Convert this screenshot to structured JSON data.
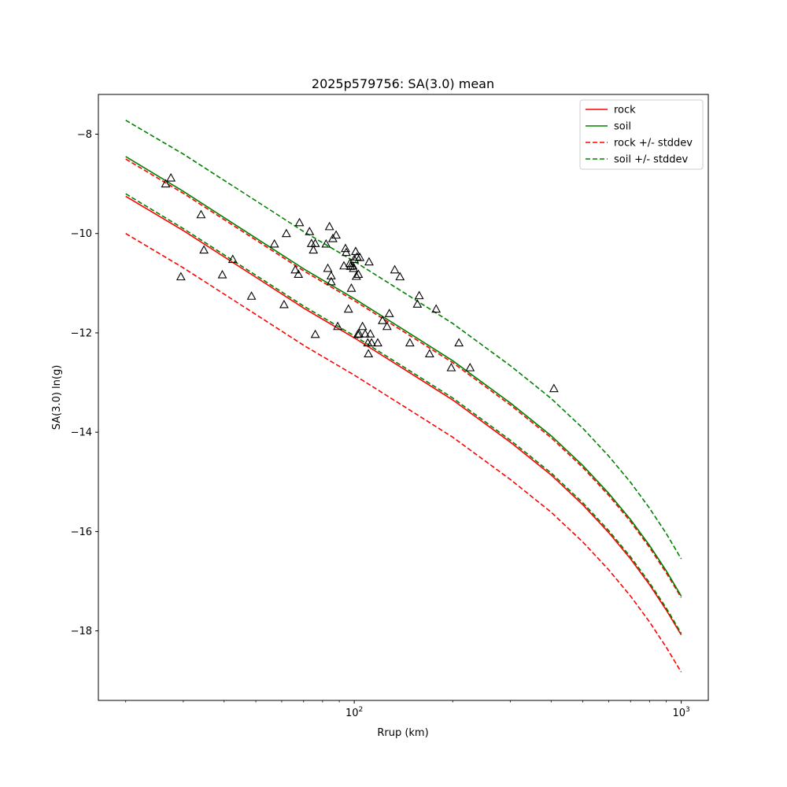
{
  "chart_data": {
    "type": "line",
    "title": "2025p579756: SA(3.0) mean",
    "xlabel": "Rrup (km)",
    "ylabel": "SA(3.0) ln(g)",
    "xscale": "log",
    "xlim": [
      16.5,
      1210
    ],
    "ylim": [
      -19.4,
      -7.2
    ],
    "yticks": [
      -18,
      -16,
      -14,
      -12,
      -10,
      -8
    ],
    "ytick_labels": [
      "−18",
      "−16",
      "−14",
      "−12",
      "−10",
      "−8"
    ],
    "xticks": [
      {
        "value": 100,
        "base": "10",
        "exp": "2"
      },
      {
        "value": 1000,
        "base": "10",
        "exp": "3"
      }
    ],
    "grid": false,
    "legend": {
      "placement": "top-right",
      "entries": [
        {
          "label": "rock",
          "color": "#ff0000",
          "style": "solid"
        },
        {
          "label": "soil",
          "color": "#008000",
          "style": "solid"
        },
        {
          "label": "rock +/- stddev",
          "color": "#ff0000",
          "style": "dashed"
        },
        {
          "label": "soil +/- stddev",
          "color": "#008000",
          "style": "dashed"
        }
      ]
    },
    "series": [
      {
        "key": "rock-mean",
        "color": "#ff0000",
        "style": "solid",
        "x": [
          20,
          30,
          50,
          70,
          100,
          150,
          200,
          300,
          400,
          500,
          600,
          700,
          800,
          900,
          1000
        ],
        "y": [
          -9.25,
          -9.94,
          -10.88,
          -11.5,
          -12.1,
          -12.83,
          -13.35,
          -14.2,
          -14.86,
          -15.46,
          -16.02,
          -16.55,
          -17.07,
          -17.58,
          -18.08
        ]
      },
      {
        "key": "rock-upper",
        "color": "#ff0000",
        "style": "dashed",
        "x": [
          20,
          30,
          50,
          70,
          100,
          150,
          200,
          300,
          400,
          500,
          600,
          700,
          800,
          900,
          1000
        ],
        "y": [
          -8.5,
          -9.19,
          -10.13,
          -10.75,
          -11.35,
          -12.08,
          -12.6,
          -13.45,
          -14.11,
          -14.71,
          -15.27,
          -15.8,
          -16.32,
          -16.83,
          -17.33
        ]
      },
      {
        "key": "rock-lower",
        "color": "#ff0000",
        "style": "dashed",
        "x": [
          20,
          30,
          50,
          70,
          100,
          150,
          200,
          300,
          400,
          500,
          600,
          700,
          800,
          900,
          1000
        ],
        "y": [
          -10.0,
          -10.69,
          -11.63,
          -12.25,
          -12.85,
          -13.58,
          -14.1,
          -14.95,
          -15.61,
          -16.21,
          -16.77,
          -17.3,
          -17.82,
          -18.33,
          -18.83
        ]
      },
      {
        "key": "soil-mean",
        "color": "#008000",
        "style": "solid",
        "x": [
          20,
          30,
          50,
          70,
          100,
          150,
          200,
          300,
          400,
          500,
          600,
          700,
          800,
          900,
          1000
        ],
        "y": [
          -8.45,
          -9.15,
          -10.09,
          -10.71,
          -11.31,
          -12.04,
          -12.56,
          -13.41,
          -14.07,
          -14.67,
          -15.23,
          -15.76,
          -16.28,
          -16.79,
          -17.3
        ]
      },
      {
        "key": "soil-upper",
        "color": "#008000",
        "style": "dashed",
        "x": [
          20,
          30,
          50,
          70,
          100,
          150,
          200,
          300,
          400,
          500,
          600,
          700,
          800,
          900,
          1000
        ],
        "y": [
          -7.72,
          -8.4,
          -9.34,
          -9.96,
          -10.56,
          -11.29,
          -11.81,
          -12.66,
          -13.32,
          -13.92,
          -14.48,
          -15.01,
          -15.53,
          -16.04,
          -16.55
        ]
      },
      {
        "key": "soil-lower",
        "color": "#008000",
        "style": "dashed",
        "x": [
          20,
          30,
          50,
          70,
          100,
          150,
          200,
          300,
          400,
          500,
          600,
          700,
          800,
          900,
          1000
        ],
        "y": [
          -9.2,
          -9.9,
          -10.84,
          -11.46,
          -12.06,
          -12.79,
          -13.31,
          -14.16,
          -14.82,
          -15.42,
          -15.98,
          -16.51,
          -17.03,
          -17.54,
          -18.05
        ]
      }
    ],
    "observations": {
      "marker": "triangle-open",
      "color": "#000000",
      "points": [
        {
          "x": 27.5,
          "y": -8.88
        },
        {
          "x": 26.5,
          "y": -9.0
        },
        {
          "x": 34,
          "y": -9.62
        },
        {
          "x": 34.7,
          "y": -10.33
        },
        {
          "x": 29.5,
          "y": -10.87
        },
        {
          "x": 39.5,
          "y": -10.83
        },
        {
          "x": 42.5,
          "y": -10.52
        },
        {
          "x": 48.5,
          "y": -11.26
        },
        {
          "x": 57,
          "y": -10.21
        },
        {
          "x": 61,
          "y": -11.43
        },
        {
          "x": 62,
          "y": -10.0
        },
        {
          "x": 66,
          "y": -10.73
        },
        {
          "x": 67.5,
          "y": -10.82
        },
        {
          "x": 68,
          "y": -9.78
        },
        {
          "x": 73,
          "y": -9.96
        },
        {
          "x": 74,
          "y": -10.2
        },
        {
          "x": 75,
          "y": -10.33
        },
        {
          "x": 76,
          "y": -10.2
        },
        {
          "x": 76,
          "y": -12.03
        },
        {
          "x": 82,
          "y": -10.21
        },
        {
          "x": 83,
          "y": -10.7
        },
        {
          "x": 84,
          "y": -9.86
        },
        {
          "x": 85,
          "y": -10.85
        },
        {
          "x": 85,
          "y": -10.97
        },
        {
          "x": 86,
          "y": -10.1
        },
        {
          "x": 88,
          "y": -10.03
        },
        {
          "x": 89,
          "y": -11.87
        },
        {
          "x": 93,
          "y": -10.65
        },
        {
          "x": 94,
          "y": -10.3
        },
        {
          "x": 94.5,
          "y": -10.38
        },
        {
          "x": 96,
          "y": -11.52
        },
        {
          "x": 97,
          "y": -10.6
        },
        {
          "x": 97.5,
          "y": -10.66
        },
        {
          "x": 98,
          "y": -11.1
        },
        {
          "x": 99,
          "y": -10.65
        },
        {
          "x": 99.5,
          "y": -10.7
        },
        {
          "x": 100,
          "y": -10.52
        },
        {
          "x": 101,
          "y": -10.36
        },
        {
          "x": 101.5,
          "y": -10.86
        },
        {
          "x": 102,
          "y": -10.47
        },
        {
          "x": 102.5,
          "y": -12.03
        },
        {
          "x": 103,
          "y": -10.82
        },
        {
          "x": 103.5,
          "y": -12.02
        },
        {
          "x": 104,
          "y": -10.48
        },
        {
          "x": 106,
          "y": -11.87
        },
        {
          "x": 108,
          "y": -12.02
        },
        {
          "x": 110,
          "y": -12.2
        },
        {
          "x": 110.5,
          "y": -12.42
        },
        {
          "x": 111,
          "y": -10.57
        },
        {
          "x": 112,
          "y": -12.02
        },
        {
          "x": 113,
          "y": -12.2
        },
        {
          "x": 118,
          "y": -12.2
        },
        {
          "x": 122,
          "y": -11.75
        },
        {
          "x": 126,
          "y": -11.87
        },
        {
          "x": 128,
          "y": -11.61
        },
        {
          "x": 133,
          "y": -10.73
        },
        {
          "x": 138,
          "y": -10.87
        },
        {
          "x": 148,
          "y": -12.2
        },
        {
          "x": 156,
          "y": -11.42
        },
        {
          "x": 158,
          "y": -11.25
        },
        {
          "x": 170,
          "y": -12.42
        },
        {
          "x": 178,
          "y": -11.52
        },
        {
          "x": 198,
          "y": -12.7
        },
        {
          "x": 209,
          "y": -12.2
        },
        {
          "x": 226,
          "y": -12.7
        },
        {
          "x": 408,
          "y": -13.12
        }
      ]
    }
  }
}
